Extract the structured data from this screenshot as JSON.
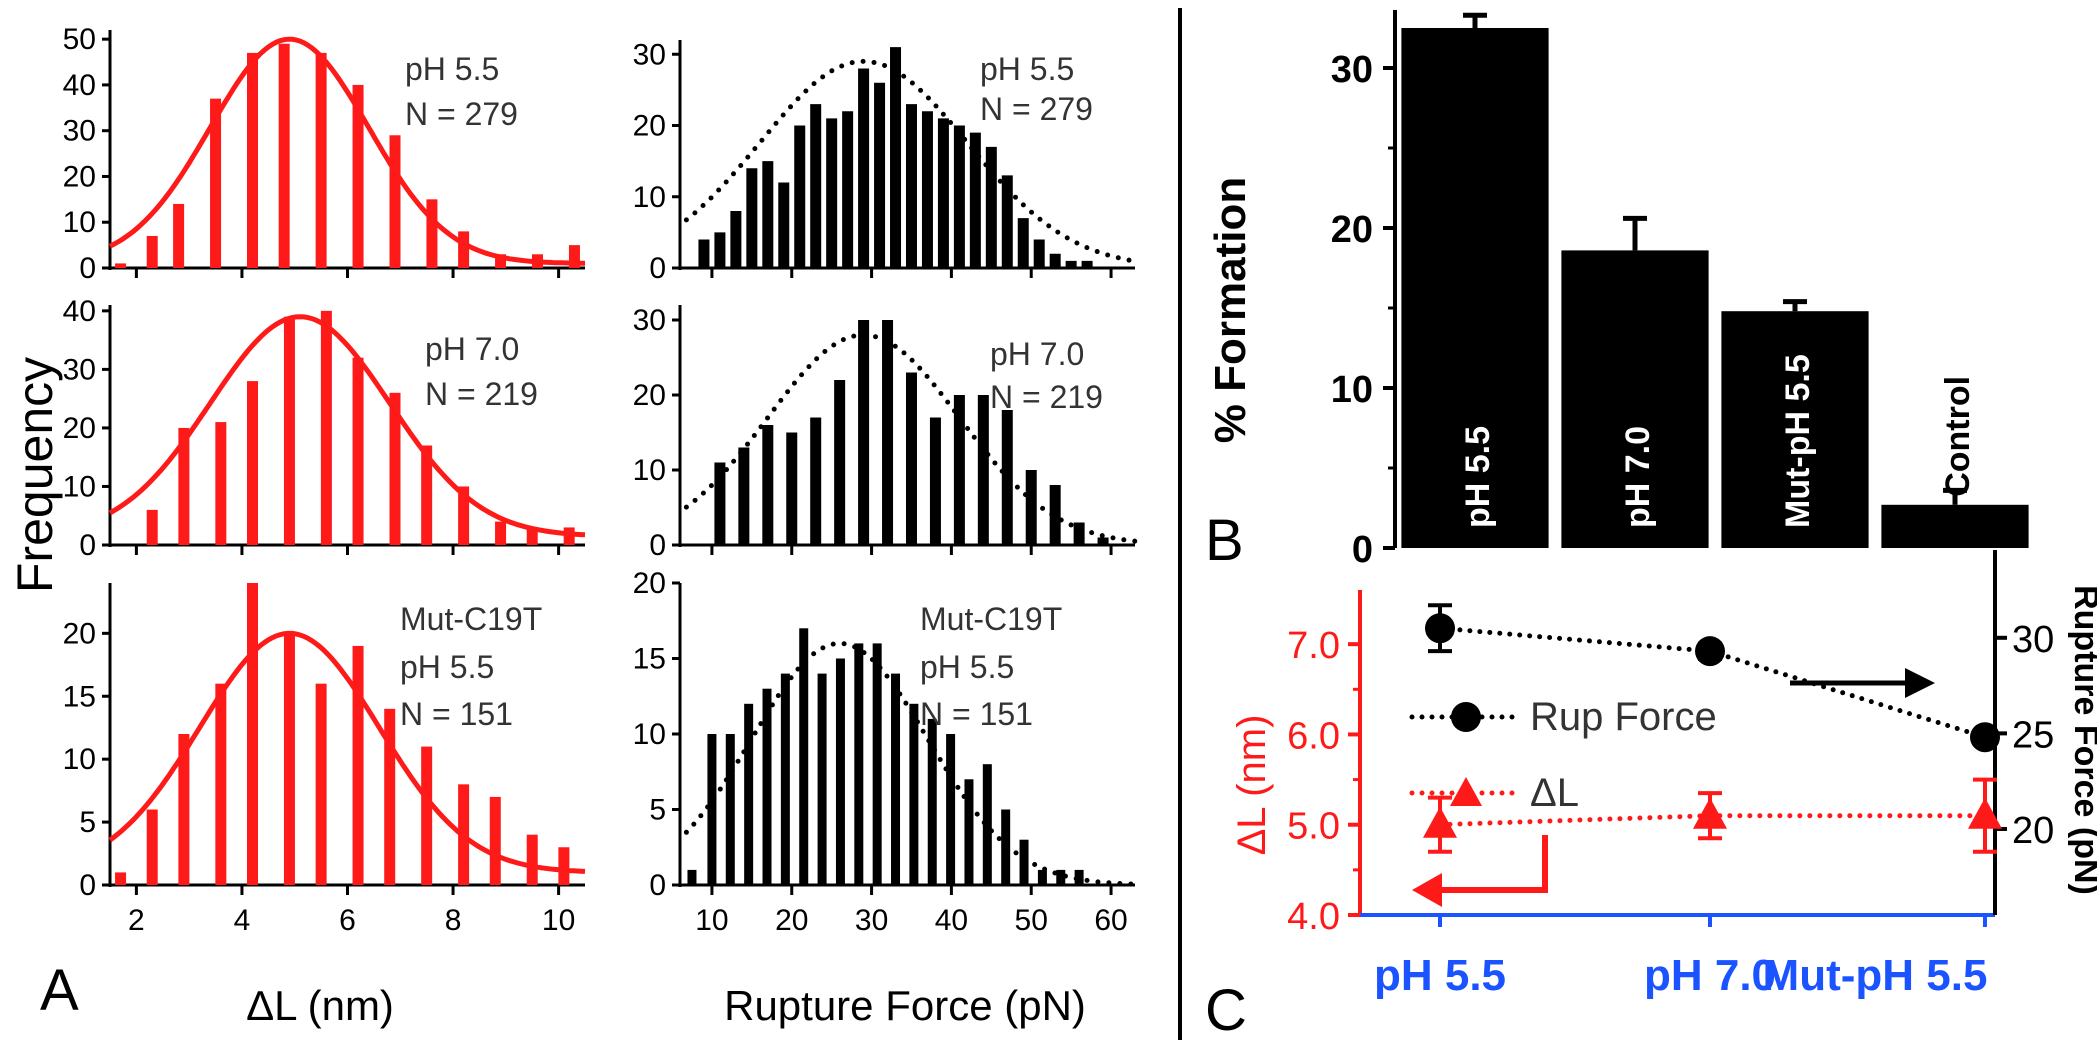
{
  "panel_letters": {
    "a": "A",
    "b": "B",
    "c": "C"
  },
  "colors": {
    "red": "#ff1a1a",
    "black": "#000000",
    "blue": "#1a53ff",
    "gray": "#333333"
  },
  "chart_data": [
    {
      "id": "A_dl_ph55",
      "type": "bar",
      "x": [
        1.7,
        2.3,
        2.8,
        3.5,
        4.2,
        4.8,
        5.5,
        6.2,
        6.9,
        7.6,
        8.2,
        8.9,
        9.6,
        10.3
      ],
      "values": [
        1,
        7,
        14,
        37,
        47,
        49,
        47,
        40,
        29,
        15,
        8,
        3,
        3,
        5
      ],
      "fit": {
        "kind": "gaussian",
        "peak": 50,
        "center": 4.9,
        "sigma": 1.5,
        "offset": 1
      },
      "ylim": [
        0,
        52
      ],
      "yticks": [
        0,
        10,
        20,
        30,
        40,
        50
      ],
      "xlim": [
        1.5,
        10.5
      ],
      "xticks": [
        2,
        4,
        6,
        8,
        10
      ],
      "annotations": [
        "pH 5.5",
        "N = 279"
      ]
    },
    {
      "id": "A_dl_ph70",
      "type": "bar",
      "x": [
        2.3,
        2.9,
        3.6,
        4.2,
        4.9,
        5.6,
        6.2,
        6.9,
        7.5,
        8.2,
        8.9,
        9.5,
        10.2
      ],
      "values": [
        6,
        20,
        21,
        28,
        39,
        40,
        32,
        26,
        17,
        10,
        4,
        3,
        3
      ],
      "fit": {
        "kind": "gaussian",
        "peak": 39,
        "center": 5.1,
        "sigma": 1.7,
        "offset": 1.5
      },
      "ylim": [
        0,
        41
      ],
      "yticks": [
        0,
        10,
        20,
        30,
        40
      ],
      "xlim": [
        1.5,
        10.5
      ],
      "xticks": [
        2,
        4,
        6,
        8,
        10
      ],
      "annotations": [
        "pH 7.0",
        "N = 219"
      ]
    },
    {
      "id": "A_dl_mut",
      "type": "bar",
      "x": [
        1.7,
        2.3,
        2.9,
        3.6,
        4.2,
        4.9,
        5.5,
        6.2,
        6.8,
        7.5,
        8.2,
        8.8,
        9.5,
        10.1
      ],
      "values": [
        1,
        6,
        12,
        16,
        24,
        20,
        16,
        19,
        14,
        11,
        8,
        7,
        4,
        3
      ],
      "fit": {
        "kind": "gaussian",
        "peak": 20,
        "center": 4.9,
        "sigma": 1.7,
        "offset": 1
      },
      "ylim": [
        0,
        24
      ],
      "yticks": [
        0,
        5,
        10,
        15,
        20
      ],
      "xlim": [
        1.5,
        10.5
      ],
      "xticks": [
        2,
        4,
        6,
        8,
        10
      ],
      "xlabel": "ΔL (nm)",
      "annotations": [
        "Mut-C19T",
        "pH 5.5",
        "N = 151"
      ]
    },
    {
      "id": "A_rf_ph55",
      "type": "bar",
      "x": [
        9,
        11,
        13,
        15,
        17,
        19,
        21,
        23,
        25,
        27,
        29,
        31,
        33,
        35,
        37,
        39,
        41,
        43,
        45,
        47,
        49,
        51,
        53,
        55,
        57
      ],
      "values": [
        4,
        5,
        8,
        14,
        15,
        12,
        20,
        23,
        21,
        22,
        28,
        26,
        31,
        23,
        22,
        21,
        20,
        19,
        17,
        13,
        7,
        4,
        2,
        1,
        1
      ],
      "fit": {
        "kind": "dotted-gaussian",
        "peak": 29,
        "center": 29,
        "sigma": 13
      },
      "ylim": [
        0,
        32
      ],
      "yticks": [
        0,
        10,
        20,
        30
      ],
      "xlim": [
        6,
        63
      ],
      "xticks": [
        10,
        20,
        30,
        40,
        50,
        60
      ],
      "annotations": [
        "pH 5.5",
        "N = 279"
      ]
    },
    {
      "id": "A_rf_ph70",
      "type": "bar",
      "x": [
        8,
        11,
        14,
        17,
        20,
        23,
        26,
        29,
        32,
        35,
        38,
        41,
        44,
        47,
        50,
        53,
        56,
        59
      ],
      "values": [
        0,
        11,
        13,
        16,
        15,
        17,
        22,
        30,
        30,
        23,
        17,
        20,
        20,
        18,
        10,
        8,
        3,
        1
      ],
      "fit": {
        "kind": "dotted-gaussian",
        "peak": 28,
        "center": 29,
        "sigma": 12
      },
      "ylim": [
        0,
        32
      ],
      "yticks": [
        0,
        10,
        20,
        30
      ],
      "xlim": [
        6,
        63
      ],
      "xticks": [
        10,
        20,
        30,
        40,
        50,
        60
      ],
      "annotations": [
        "pH 7.0",
        "N = 219"
      ]
    },
    {
      "id": "A_rf_mut",
      "type": "bar",
      "x": [
        7.5,
        10,
        12.3,
        14.6,
        16.9,
        19.2,
        21.5,
        23.8,
        26.1,
        28.4,
        30.7,
        33,
        35.3,
        37.6,
        39.9,
        42.2,
        44.5,
        46.8,
        49.1,
        51.4,
        53.7,
        56
      ],
      "values": [
        1,
        10,
        10,
        12,
        13,
        14,
        17,
        14,
        15,
        16,
        16,
        14,
        12,
        11,
        10,
        7,
        8,
        5,
        3,
        1,
        1,
        1
      ],
      "fit": {
        "kind": "dotted-gaussian",
        "peak": 16,
        "center": 26,
        "sigma": 11
      },
      "ylim": [
        0,
        20
      ],
      "yticks": [
        0,
        5,
        10,
        15,
        20
      ],
      "xlim": [
        6,
        63
      ],
      "xticks": [
        10,
        20,
        30,
        40,
        50,
        60
      ],
      "xlabel": "Rupture Force (pN)",
      "annotations": [
        "Mut-C19T",
        "pH 5.5",
        "N = 151"
      ]
    },
    {
      "id": "B_formation",
      "type": "bar",
      "categories": [
        "pH 5.5",
        "pH 7.0",
        "Mut-pH 5.5",
        "Control"
      ],
      "values": [
        32.5,
        18.6,
        14.8,
        2.7
      ],
      "errors": [
        0.8,
        2.0,
        0.6,
        0.9
      ],
      "ylabel": "% Formation",
      "ylim": [
        0,
        33
      ],
      "yticks": [
        0,
        10,
        20,
        30
      ]
    },
    {
      "id": "C_summary",
      "type": "line",
      "categories": [
        "pH 5.5",
        "pH 7.0",
        "Mut-pH 5.5"
      ],
      "series": [
        {
          "name": "Rup Force",
          "axis": "right",
          "values": [
            30.5,
            29.3,
            24.8
          ],
          "errors": [
            1.2,
            0.4,
            0.3
          ]
        },
        {
          "name": "ΔL",
          "axis": "left",
          "values": [
            5.0,
            5.1,
            5.1
          ],
          "errors": [
            0.3,
            0.25,
            0.4
          ]
        }
      ],
      "ylabel_left": "ΔL (nm)",
      "ylim_left": [
        4.0,
        7.6
      ],
      "yticks_left": [
        "4.0",
        "5.0",
        "6.0",
        "7.0"
      ],
      "ylabel_right": "Rupture Force (pN)",
      "ylim_right": [
        15.5,
        32.5
      ],
      "yticks_right": [
        "20",
        "25",
        "30"
      ]
    }
  ],
  "axis_labels": {
    "frequency": "Frequency",
    "dl": "ΔL (nm)",
    "rf": "Rupture Force (pN)",
    "formation": "% Formation",
    "c_left": "ΔL (nm)",
    "c_right": "Rupture Force (pN)"
  },
  "legend": {
    "rup": "Rup Force",
    "dl": "ΔL"
  }
}
